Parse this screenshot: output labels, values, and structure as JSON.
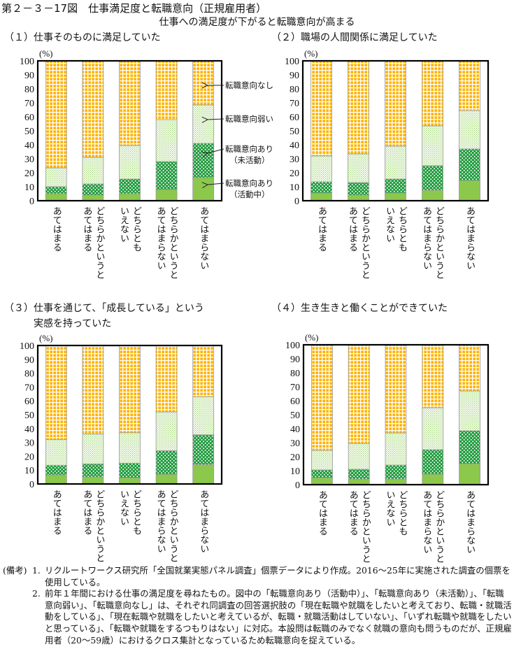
{
  "figure": {
    "title": "第２－３－17図　仕事満足度と転職意向（正規雇用者）",
    "subtitle": "仕事への満足度が下がると転職意向が高まる"
  },
  "panels": [
    {
      "title_lines": [
        "（１）仕事そのものに満足していた"
      ]
    },
    {
      "title_lines": [
        "（２）職場の人間関係に満足していた"
      ]
    },
    {
      "title_lines": [
        "（３）仕事を通じて、「成長している」という",
        "　　　実感を持っていた"
      ]
    },
    {
      "title_lines": [
        "（４）生き生きと働くことができていた"
      ]
    }
  ],
  "legend": [
    {
      "lines": [
        "転職意向なし"
      ]
    },
    {
      "lines": [
        "転職意向弱い"
      ]
    },
    {
      "lines": [
        "転職意向あり",
        "（未活動）"
      ]
    },
    {
      "lines": [
        "転職意向あり",
        "（活動中）"
      ]
    }
  ],
  "notes": {
    "label": "(備考)",
    "items": [
      {
        "num": "1.",
        "text": "リクルートワークス研究所「全国就業実態パネル調査」個票データにより作成。2016～25年に実施された調査の個票を使用している。"
      },
      {
        "num": "2.",
        "text": "前年１年間における仕事の満足度を尋ねたもの。図中の「転職意向あり（活動中）」、「転職意向あり（未活動）」、「転職意向弱い」、「転職意向なし」は、それぞれ同調査の回答選択肢の「現在転職や就職をしたいと考えており、転職・就職活動をしている」、「現在転職や就職をしたいと考えているが、転職・就職活動はしていない」、「いずれ転職や就職をしたいと思っている」、「転職や就職をするつもりはない」に対応。本設問は転職のみでなく就職の意向も問うものだが、正規雇用者（20～59歳）におけるクロス集計となっているため転職意向を捉えている。"
      }
    ]
  },
  "colors": {
    "none": "#FFB400",
    "weak": "#9BD46A",
    "inactive": "#1E9A3C",
    "active": "#8CC84B"
  },
  "chart_data": [
    {
      "type": "bar",
      "stacked": true,
      "title": "（１）仕事そのものに満足していた",
      "ylabel": "(%)",
      "ylim": [
        0,
        100
      ],
      "yticks": [
        0,
        10,
        20,
        30,
        40,
        50,
        60,
        70,
        80,
        90,
        100
      ],
      "categories": [
        "あてはまる",
        "どちらかというと\nあてはまる",
        "どちらとも\nいえない",
        "どちらかというと\nあてはまらない",
        "あてはまらない"
      ],
      "series": [
        {
          "name": "転職意向あり（活動中）",
          "key": "active",
          "values": [
            5,
            4,
            5,
            8,
            16.5
          ]
        },
        {
          "name": "転職意向あり（未活動）",
          "key": "inactive",
          "values": [
            5,
            8,
            10.5,
            20,
            24.5
          ]
        },
        {
          "name": "転職意向弱い",
          "key": "weak",
          "values": [
            13.5,
            19,
            24,
            30,
            27.5
          ]
        },
        {
          "name": "転職意向なし",
          "key": "none",
          "values": [
            76.5,
            69,
            60.5,
            42,
            31.5
          ]
        }
      ]
    },
    {
      "type": "bar",
      "stacked": true,
      "title": "（２）職場の人間関係に満足していた",
      "ylabel": "(%)",
      "ylim": [
        0,
        100
      ],
      "yticks": [
        0,
        10,
        20,
        30,
        40,
        50,
        60,
        70,
        80,
        90,
        100
      ],
      "categories": [
        "あてはまる",
        "どちらかというと\nあてはまる",
        "どちらとも\nいえない",
        "どちらかというと\nあてはまらない",
        "あてはまらない"
      ],
      "series": [
        {
          "name": "転職意向あり（活動中）",
          "key": "active",
          "values": [
            5.5,
            4,
            5.5,
            7.5,
            14.5
          ]
        },
        {
          "name": "転職意向あり（未活動）",
          "key": "inactive",
          "values": [
            8,
            9,
            10,
            17.5,
            22.5
          ]
        },
        {
          "name": "転職意向弱い",
          "key": "weak",
          "values": [
            18.5,
            20.5,
            23.5,
            28.5,
            27.5
          ]
        },
        {
          "name": "転職意向なし",
          "key": "none",
          "values": [
            68,
            66.5,
            61,
            46.5,
            35.5
          ]
        }
      ]
    },
    {
      "type": "bar",
      "stacked": true,
      "title": "（３）仕事を通じて、「成長している」という実感を持っていた",
      "ylabel": "(%)",
      "ylim": [
        0,
        100
      ],
      "yticks": [
        0,
        10,
        20,
        30,
        40,
        50,
        60,
        70,
        80,
        90,
        100
      ],
      "categories": [
        "あてはまる",
        "どちらかというと\nあてはまる",
        "どちらとも\nいえない",
        "どちらかというと\nあてはまらない",
        "あてはまらない"
      ],
      "series": [
        {
          "name": "転職意向あり（活動中）",
          "key": "active",
          "values": [
            6.5,
            5,
            4.5,
            7,
            14
          ]
        },
        {
          "name": "転職意向あり（未活動）",
          "key": "inactive",
          "values": [
            7,
            9.5,
            10.5,
            17,
            21.5
          ]
        },
        {
          "name": "転職意向弱い",
          "key": "weak",
          "values": [
            18.5,
            21.5,
            22,
            28,
            27.5
          ]
        },
        {
          "name": "転職意向なし",
          "key": "none",
          "values": [
            68,
            64,
            63,
            48,
            37
          ]
        }
      ]
    },
    {
      "type": "bar",
      "stacked": true,
      "title": "（４）生き生きと働くことができていた",
      "ylabel": "(%)",
      "ylim": [
        0,
        100
      ],
      "yticks": [
        0,
        10,
        20,
        30,
        40,
        50,
        60,
        70,
        80,
        90,
        100
      ],
      "categories": [
        "あてはまる",
        "どちらかというと\nあてはまる",
        "どちらとも\nいえない",
        "どちらかというと\nあてはまらない",
        "あてはまらない"
      ],
      "series": [
        {
          "name": "転職意向あり（活動中）",
          "key": "active",
          "values": [
            5,
            4,
            4,
            7.5,
            15
          ]
        },
        {
          "name": "転職意向あり（未活動）",
          "key": "inactive",
          "values": [
            5.5,
            7,
            10,
            17.5,
            23.5
          ]
        },
        {
          "name": "転職意向弱い",
          "key": "weak",
          "values": [
            14,
            18.5,
            23,
            30,
            28.5
          ]
        },
        {
          "name": "転職意向なし",
          "key": "none",
          "values": [
            75.5,
            70.5,
            63,
            45,
            33
          ]
        }
      ]
    }
  ]
}
